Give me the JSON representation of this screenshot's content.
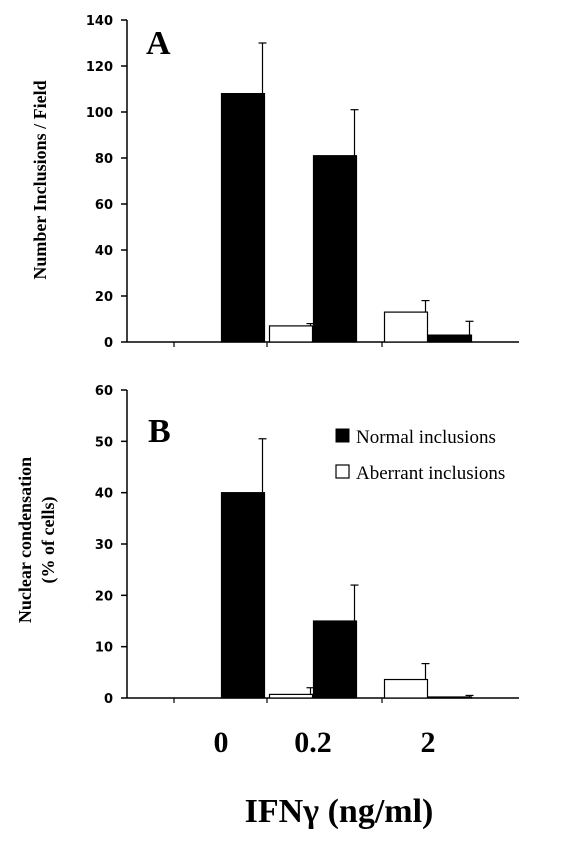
{
  "chart_data": [
    {
      "type": "bar",
      "panel_label": "A",
      "categories": [
        "0",
        "0.2",
        "2"
      ],
      "ylabel": "Number Inclusions / Field",
      "ylim": [
        0,
        140
      ],
      "yticks": [
        0,
        20,
        40,
        60,
        80,
        100,
        120,
        140
      ],
      "series": [
        {
          "name": "Aberrant inclusions",
          "values": [
            0,
            7,
            13
          ],
          "errors": [
            0,
            1,
            5
          ]
        },
        {
          "name": "Normal inclusions",
          "values": [
            108,
            81,
            3
          ],
          "errors": [
            22,
            20,
            6
          ]
        }
      ]
    },
    {
      "type": "bar",
      "panel_label": "B",
      "categories": [
        "0",
        "0.2",
        "2"
      ],
      "ylabel": [
        "Nuclear condensation",
        "(% of cells)"
      ],
      "ylim": [
        0,
        60
      ],
      "yticks": [
        0,
        10,
        20,
        30,
        40,
        50,
        60
      ],
      "legend": "top-right",
      "series": [
        {
          "name": "Aberrant inclusions",
          "values": [
            0,
            0.7,
            3.6
          ],
          "errors": [
            0,
            1.3,
            3.1
          ]
        },
        {
          "name": "Normal inclusions",
          "values": [
            40,
            15,
            0.2
          ],
          "errors": [
            10.5,
            7,
            0.3
          ]
        }
      ]
    }
  ],
  "xlabel": "IFNγ (ng/ml)",
  "legend": {
    "normal_label": "Normal inclusions",
    "aberrant_label": "Aberrant inclusions"
  },
  "colors": {
    "normal_fill": "#000000",
    "aberrant_fill": "#ffffff"
  }
}
